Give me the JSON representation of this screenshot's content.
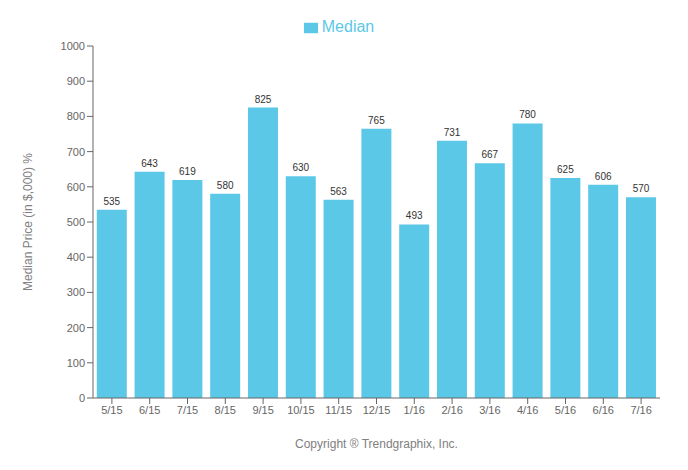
{
  "chart_data": {
    "type": "bar",
    "categories": [
      "5/15",
      "6/15",
      "7/15",
      "8/15",
      "9/15",
      "10/15",
      "11/15",
      "12/15",
      "1/16",
      "2/16",
      "3/16",
      "4/16",
      "5/16",
      "6/16",
      "7/16"
    ],
    "series": [
      {
        "name": "Median",
        "color": "#5BC8E8",
        "values": [
          535,
          643,
          619,
          580,
          825,
          630,
          563,
          765,
          493,
          731,
          667,
          780,
          625,
          606,
          570
        ]
      }
    ],
    "xlabel": "Copyright ® Trendgraphix, Inc.",
    "ylabel": "Median Price (in $,000) %",
    "ylim": [
      0,
      1000
    ],
    "yticks": [
      0,
      100,
      200,
      300,
      400,
      500,
      600,
      700,
      800,
      900,
      1000
    ],
    "grid": false,
    "legend": "top",
    "data_labels": true
  }
}
